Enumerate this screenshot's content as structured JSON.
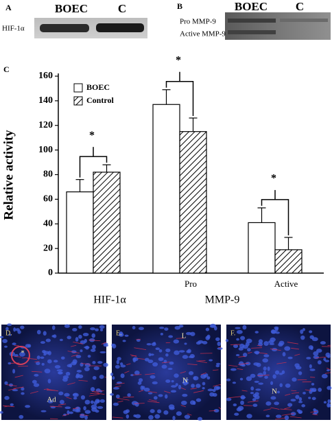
{
  "panel_a": {
    "label": "A",
    "lanes": [
      "BOEC",
      "C"
    ],
    "rows": [
      "HIF-1α"
    ]
  },
  "panel_b": {
    "label": "B",
    "lanes": [
      "BOEC",
      "C"
    ],
    "rows": [
      "Pro MMP-9",
      "Active MMP-9"
    ]
  },
  "chart_data": {
    "type": "bar",
    "panel_label": "C",
    "ylabel": "Relative activity",
    "categories": [
      null,
      "Pro",
      "Active"
    ],
    "group_labels": [
      "HIF-1α",
      "MMP-9"
    ],
    "series": [
      {
        "name": "BOEC",
        "color": "#ffffff",
        "hatch": false,
        "values": [
          66,
          137,
          41
        ],
        "errors": [
          10,
          12,
          12
        ]
      },
      {
        "name": "Control",
        "color": "#ffffff",
        "hatch": true,
        "values": [
          82,
          115,
          19
        ],
        "errors": [
          6,
          11,
          10
        ]
      }
    ],
    "annotations": [
      "*",
      "*",
      "*"
    ],
    "ylim": [
      0,
      160
    ],
    "yticks": [
      0,
      20,
      40,
      60,
      80,
      100,
      120,
      140,
      160
    ],
    "grid": false,
    "legend": "upper left"
  },
  "micrographs": [
    {
      "label": "D.",
      "marks": [
        "*",
        "Ad"
      ]
    },
    {
      "label": "E.",
      "marks": [
        "L",
        "N"
      ]
    },
    {
      "label": "F.",
      "marks": [
        "N"
      ]
    }
  ]
}
